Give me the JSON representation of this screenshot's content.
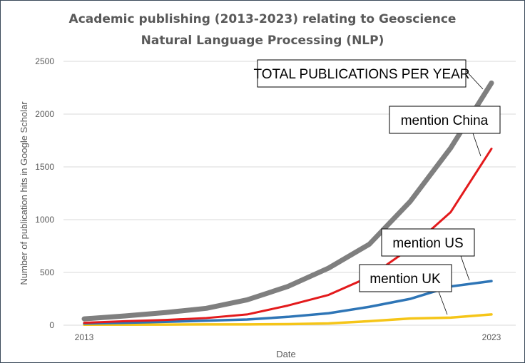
{
  "chart_data": {
    "type": "line",
    "title": [
      "Academic publishing  (2013-2023) relating to Geoscience",
      "Natural Language Processing (NLP)"
    ],
    "xlabel": "Date",
    "ylabel": "Number of publication hits in Google Scholar",
    "x": [
      2013,
      2014,
      2015,
      2016,
      2017,
      2018,
      2019,
      2020,
      2021,
      2022,
      2023
    ],
    "x_tick_labels": [
      "2013",
      "2023"
    ],
    "y_ticks": [
      0,
      500,
      1000,
      1500,
      2000,
      2500
    ],
    "ylim": [
      0,
      2500
    ],
    "grid": true,
    "series": [
      {
        "name": "TOTAL PUBLICATIONS PER YEAR",
        "color": "#7f7f7f",
        "values": [
          60,
          88,
          120,
          160,
          240,
          367,
          541,
          767,
          1170,
          1680,
          2295
        ]
      },
      {
        "name": "mention China",
        "color": "#e31a1c",
        "values": [
          23,
          38,
          50,
          68,
          102,
          186,
          287,
          457,
          728,
          1072,
          1672
        ]
      },
      {
        "name": "mention US",
        "color": "#2e75b6",
        "values": [
          16,
          23,
          32,
          43,
          54,
          79,
          113,
          174,
          249,
          367,
          418
        ]
      },
      {
        "name": "mention UK",
        "color": "#f5c518",
        "values": [
          5,
          5,
          6,
          8,
          8,
          10,
          17,
          38,
          63,
          72,
          102
        ]
      }
    ]
  }
}
